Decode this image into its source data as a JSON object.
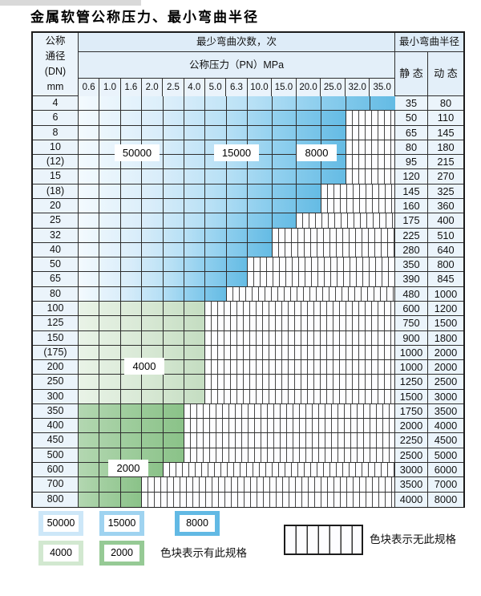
{
  "title": "金属软管公称压力、最小弯曲半径",
  "header": {
    "dn_lines": [
      "公称",
      "通径",
      "(DN)",
      "mm"
    ],
    "cycles": "最少弯曲次数，次",
    "pn": "公称压力（PN）MPa",
    "radius": "最小弯曲半径",
    "static": "静 态",
    "dynamic": "动 态",
    "pressures": [
      "0.6",
      "1.0",
      "1.6",
      "2.0",
      "2.5",
      "4.0",
      "5.0",
      "6.3",
      "10.0",
      "15.0",
      "20.0",
      "25.0",
      "32.0",
      "35.0"
    ]
  },
  "zone_labels": [
    "50000",
    "15000",
    "8000",
    "4000",
    "2000"
  ],
  "table": {
    "rows": [
      {
        "dn": "4",
        "cols": 14,
        "zone": "blue",
        "static": "35",
        "dynamic": "80"
      },
      {
        "dn": "6",
        "cols": 12,
        "zone": "blue",
        "static": "50",
        "dynamic": "110"
      },
      {
        "dn": "8",
        "cols": 12,
        "zone": "blue",
        "static": "65",
        "dynamic": "145"
      },
      {
        "dn": "10",
        "cols": 12,
        "zone": "blue",
        "static": "80",
        "dynamic": "180"
      },
      {
        "dn": "(12)",
        "cols": 12,
        "zone": "blue",
        "static": "95",
        "dynamic": "215"
      },
      {
        "dn": "15",
        "cols": 12,
        "zone": "blue",
        "static": "120",
        "dynamic": "270"
      },
      {
        "dn": "(18)",
        "cols": 11,
        "zone": "blue",
        "static": "145",
        "dynamic": "325"
      },
      {
        "dn": "20",
        "cols": 11,
        "zone": "blue",
        "static": "160",
        "dynamic": "360"
      },
      {
        "dn": "25",
        "cols": 10,
        "zone": "blue",
        "static": "175",
        "dynamic": "400"
      },
      {
        "dn": "32",
        "cols": 9,
        "zone": "blue",
        "static": "225",
        "dynamic": "510"
      },
      {
        "dn": "40",
        "cols": 9,
        "zone": "blue",
        "static": "280",
        "dynamic": "640"
      },
      {
        "dn": "50",
        "cols": 8,
        "zone": "blue",
        "static": "350",
        "dynamic": "800"
      },
      {
        "dn": "65",
        "cols": 8,
        "zone": "blue",
        "static": "390",
        "dynamic": "845"
      },
      {
        "dn": "80",
        "cols": 7,
        "zone": "blue",
        "static": "480",
        "dynamic": "1000"
      },
      {
        "dn": "100",
        "cols": 6,
        "zone": "lightgreen",
        "static": "600",
        "dynamic": "1200"
      },
      {
        "dn": "125",
        "cols": 6,
        "zone": "lightgreen",
        "static": "750",
        "dynamic": "1500"
      },
      {
        "dn": "150",
        "cols": 6,
        "zone": "lightgreen",
        "static": "900",
        "dynamic": "1800"
      },
      {
        "dn": "(175)",
        "cols": 6,
        "zone": "lightgreen",
        "static": "1000",
        "dynamic": "2000"
      },
      {
        "dn": "200",
        "cols": 6,
        "zone": "lightgreen",
        "static": "1000",
        "dynamic": "2000"
      },
      {
        "dn": "250",
        "cols": 6,
        "zone": "lightgreen",
        "static": "1250",
        "dynamic": "2500"
      },
      {
        "dn": "300",
        "cols": 6,
        "zone": "lightgreen",
        "static": "1500",
        "dynamic": "3000"
      },
      {
        "dn": "350",
        "cols": 5,
        "zone": "green",
        "static": "1750",
        "dynamic": "3500"
      },
      {
        "dn": "400",
        "cols": 5,
        "zone": "green",
        "static": "2000",
        "dynamic": "4000"
      },
      {
        "dn": "450",
        "cols": 5,
        "zone": "green",
        "static": "2250",
        "dynamic": "4500"
      },
      {
        "dn": "500",
        "cols": 5,
        "zone": "green",
        "static": "2500",
        "dynamic": "5000"
      },
      {
        "dn": "600",
        "cols": 4,
        "zone": "green",
        "static": "3000",
        "dynamic": "6000"
      },
      {
        "dn": "700",
        "cols": 3,
        "zone": "green",
        "static": "3500",
        "dynamic": "7000"
      },
      {
        "dn": "800",
        "cols": 3,
        "zone": "green",
        "static": "4000",
        "dynamic": "8000"
      }
    ]
  },
  "legend": {
    "swatches": [
      {
        "label": "50000",
        "color": "#cde7f8"
      },
      {
        "label": "15000",
        "color": "#9fd3f0"
      },
      {
        "label": "8000",
        "color": "#62b9e4"
      },
      {
        "label": "4000",
        "color": "#d2e8d0"
      },
      {
        "label": "2000",
        "color": "#96ca95"
      }
    ],
    "has_spec": "色块表示有此规格",
    "no_spec": "色块表示无此规格"
  },
  "colors": {
    "blue_dark": "#62b9e4",
    "blue_mid": "#9fd3f0",
    "blue_light": "#cde7f8",
    "green_light": "#d2e8d0",
    "green_mid": "#96ca95",
    "header_bg": "#deecf8",
    "cell_bg": "#ebf4fb",
    "border": "#2e2e2e"
  }
}
